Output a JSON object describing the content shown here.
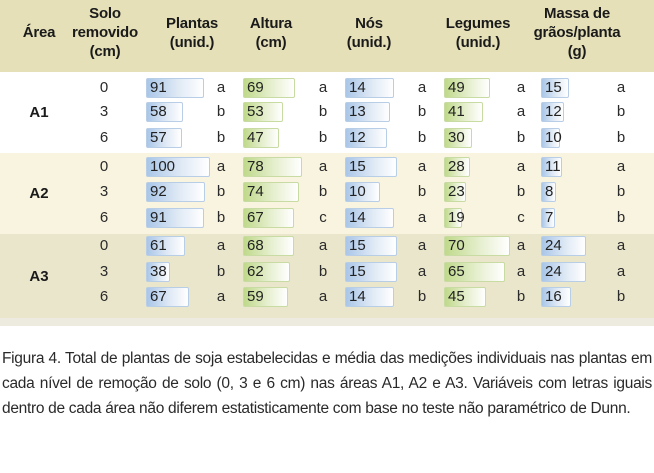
{
  "headers": {
    "area": "Área",
    "solo_line1": "Solo",
    "solo_line2": "removido",
    "solo_line3": "(cm)",
    "plantas_line1": "Plantas",
    "plantas_line2": "(unid.)",
    "altura_line1": "Altura",
    "altura_line2": "(cm)",
    "nos_line1": "Nós",
    "nos_line2": "(unid.)",
    "legumes_line1": "Legumes",
    "legumes_line2": "(unid.)",
    "massa_line1": "Massa de",
    "massa_line2": "grãos/planta",
    "massa_line3": "(g)"
  },
  "colors": {
    "header_band": "#e5e0b8",
    "bar_blue": "#a9c6e8",
    "bar_green": "#bfd98a"
  },
  "groups": [
    {
      "area": "A1",
      "rows": [
        {
          "solo": "0",
          "plantas": {
            "v": "91",
            "l": "a"
          },
          "altura": {
            "v": "69",
            "l": "a"
          },
          "nos": {
            "v": "14",
            "l": "a"
          },
          "legumes": {
            "v": "49",
            "l": "a"
          },
          "massa": {
            "v": "15",
            "l": "a"
          }
        },
        {
          "solo": "3",
          "plantas": {
            "v": "58",
            "l": "b"
          },
          "altura": {
            "v": "53",
            "l": "b"
          },
          "nos": {
            "v": "13",
            "l": "b"
          },
          "legumes": {
            "v": "41",
            "l": "a"
          },
          "massa": {
            "v": "12",
            "l": "b"
          }
        },
        {
          "solo": "6",
          "plantas": {
            "v": "57",
            "l": "b"
          },
          "altura": {
            "v": "47",
            "l": "b"
          },
          "nos": {
            "v": "12",
            "l": "b"
          },
          "legumes": {
            "v": "30",
            "l": "b"
          },
          "massa": {
            "v": "10",
            "l": "b"
          }
        }
      ]
    },
    {
      "area": "A2",
      "rows": [
        {
          "solo": "0",
          "plantas": {
            "v": "100",
            "l": "a"
          },
          "altura": {
            "v": "78",
            "l": "a"
          },
          "nos": {
            "v": "15",
            "l": "a"
          },
          "legumes": {
            "v": "28",
            "l": "a"
          },
          "massa": {
            "v": "11",
            "l": "a"
          }
        },
        {
          "solo": "3",
          "plantas": {
            "v": "92",
            "l": "b"
          },
          "altura": {
            "v": "74",
            "l": "b"
          },
          "nos": {
            "v": "10",
            "l": "b"
          },
          "legumes": {
            "v": "23",
            "l": "b"
          },
          "massa": {
            "v": "8",
            "l": "b"
          }
        },
        {
          "solo": "6",
          "plantas": {
            "v": "91",
            "l": "b"
          },
          "altura": {
            "v": "67",
            "l": "c"
          },
          "nos": {
            "v": "14",
            "l": "a"
          },
          "legumes": {
            "v": "19",
            "l": "c"
          },
          "massa": {
            "v": "7",
            "l": "b"
          }
        }
      ]
    },
    {
      "area": "A3",
      "rows": [
        {
          "solo": "0",
          "plantas": {
            "v": "61",
            "l": "a"
          },
          "altura": {
            "v": "68",
            "l": "a"
          },
          "nos": {
            "v": "15",
            "l": "a"
          },
          "legumes": {
            "v": "70",
            "l": "a"
          },
          "massa": {
            "v": "24",
            "l": "a"
          }
        },
        {
          "solo": "3",
          "plantas": {
            "v": "38",
            "l": "b"
          },
          "altura": {
            "v": "62",
            "l": "b"
          },
          "nos": {
            "v": "15",
            "l": "a"
          },
          "legumes": {
            "v": "65",
            "l": "a"
          },
          "massa": {
            "v": "24",
            "l": "a"
          }
        },
        {
          "solo": "6",
          "plantas": {
            "v": "67",
            "l": "a"
          },
          "altura": {
            "v": "59",
            "l": "a"
          },
          "nos": {
            "v": "14",
            "l": "b"
          },
          "legumes": {
            "v": "45",
            "l": "b"
          },
          "massa": {
            "v": "16",
            "l": "b"
          }
        }
      ]
    }
  ],
  "caption": "Figura 4. Total de plantas de soja estabelecidas e média das medições individuais nas plantas em cada nível de remoção de solo (0, 3 e 6 cm) nas áreas A1, A2 e A3. Variáveis com letras iguais dentro de cada área não diferem estatisticamente com base no teste não paramétrico de Dunn."
}
